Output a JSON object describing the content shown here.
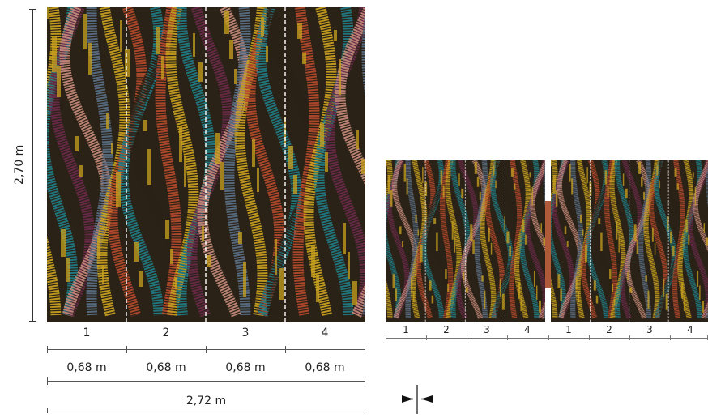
{
  "height_label": "2,70 m",
  "total_width_label": "2,72 m",
  "panels": [
    {
      "number": "1",
      "width": "0,68 m"
    },
    {
      "number": "2",
      "width": "0,68 m"
    },
    {
      "number": "3",
      "width": "0,68 m"
    },
    {
      "number": "4",
      "width": "0,68 m"
    }
  ],
  "repeat_preview": {
    "numbers": [
      "1",
      "2",
      "3",
      "4",
      "1",
      "2",
      "3",
      "4"
    ]
  },
  "colors": {
    "gold": "#c9a11f",
    "rust": "#b54a2b",
    "teal": "#1f7c86",
    "plum": "#6a2a4a",
    "dark": "#2a2217",
    "rose": "#c48a7a",
    "slate": "#5a6f86"
  }
}
